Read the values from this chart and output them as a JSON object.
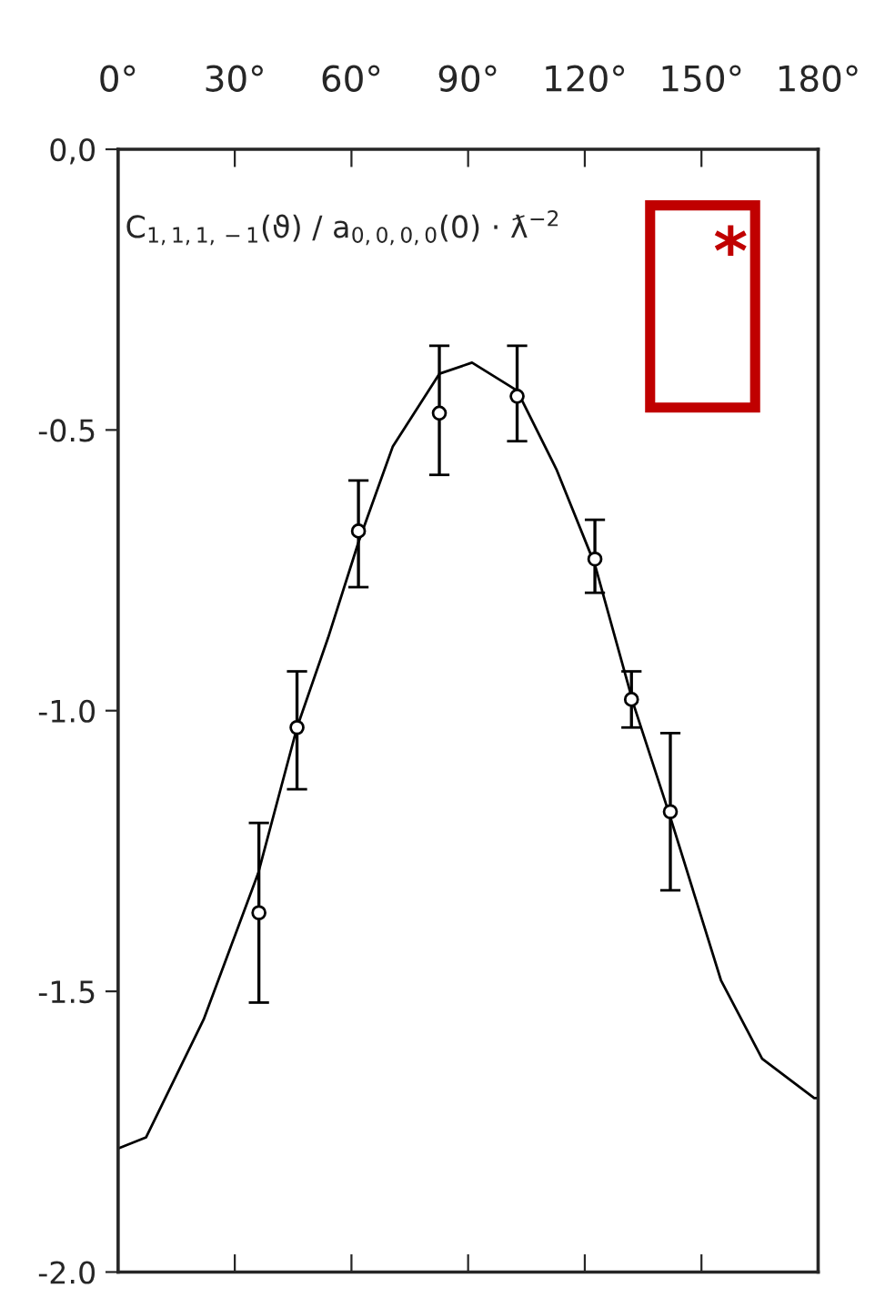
{
  "chart_data": {
    "type": "scatter",
    "series": [
      {
        "color": "#000000",
        "marker": "circle",
        "x": [
          36.2,
          46,
          61.8,
          82.6,
          102.6,
          122.6,
          132,
          142
        ],
        "values": [
          -1.36,
          -1.03,
          -0.68,
          -0.47,
          -0.44,
          -0.73,
          -0.98,
          -1.18
        ],
        "errors": [
          [
            -1.52,
            -1.2
          ],
          [
            -1.14,
            -0.93
          ],
          [
            -0.78,
            -0.59
          ],
          [
            -0.58,
            -0.35
          ],
          [
            -0.52,
            -0.35
          ],
          [
            -0.79,
            -0.66
          ],
          [
            -1.03,
            -0.93
          ],
          [
            -1.32,
            -1.04
          ]
        ]
      },
      {
        "type": "line",
        "color": "#000000",
        "marker": "none",
        "line_style": "solid",
        "x": [
          0,
          7.2,
          22,
          36,
          46,
          54,
          61.8,
          70.6,
          82.6,
          91,
          102.6,
          112.7,
          122.6,
          132.6,
          142,
          155,
          165.6,
          179,
          180
        ],
        "values": [
          -1.78,
          -1.76,
          -1.55,
          -1.29,
          -1.03,
          -0.87,
          -0.7,
          -0.53,
          -0.4,
          -0.38,
          -0.43,
          -0.57,
          -0.74,
          -0.99,
          -1.19,
          -1.48,
          -1.62,
          -1.69,
          -1.69
        ]
      }
    ],
    "xlim": [
      0,
      180
    ],
    "xticks": [
      {
        "value": 0,
        "label": "0°"
      },
      {
        "value": 30,
        "label": "30°"
      },
      {
        "value": 60,
        "label": "60°"
      },
      {
        "value": 90,
        "label": "90°"
      },
      {
        "value": 120,
        "label": "120°"
      },
      {
        "value": 150,
        "label": "150°"
      },
      {
        "value": 180,
        "label": "180°"
      }
    ],
    "ylim": [
      -2.0,
      0.0
    ],
    "yticks": [
      {
        "value": 0.0,
        "label": "0,0"
      },
      {
        "value": -0.5,
        "label": "-0.5"
      },
      {
        "value": -1.0,
        "label": "-1.0"
      },
      {
        "value": -1.5,
        "label": "-1.5"
      },
      {
        "value": -2.0,
        "label": "-2.0"
      }
    ],
    "annotations": [
      "C$_{1,1,1,−1}$(ϑ) / a$_{0,0,0,0}$(0) · ƛ$^{−2}$",
      "*"
    ],
    "grid": false
  }
}
